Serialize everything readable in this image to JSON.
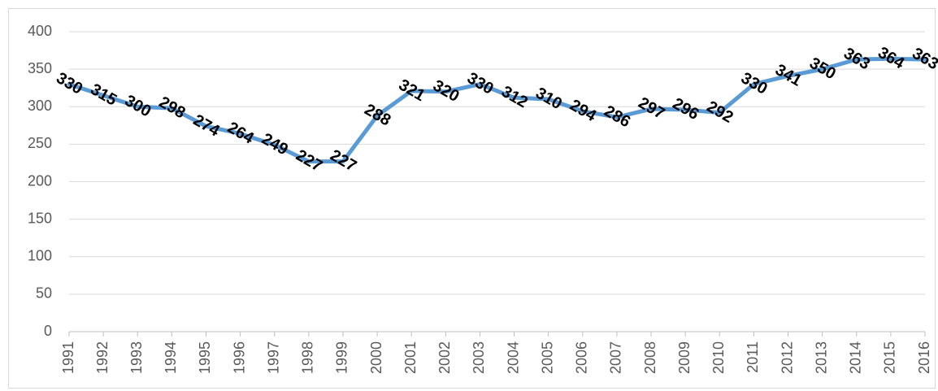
{
  "chart_data": {
    "type": "line",
    "categories": [
      "1991",
      "1992",
      "1993",
      "1994",
      "1995",
      "1996",
      "1997",
      "1998",
      "1999",
      "2000",
      "2001",
      "2002",
      "2003",
      "2004",
      "2005",
      "2006",
      "2007",
      "2008",
      "2009",
      "2010",
      "2011",
      "2012",
      "2013",
      "2014",
      "2015",
      "2016"
    ],
    "series": [
      {
        "color": "#5b9bd5",
        "values": [
          330,
          315,
          300,
          298,
          274,
          264,
          249,
          227,
          227,
          288,
          321,
          320,
          330,
          312,
          310,
          294,
          286,
          297,
          296,
          292,
          330,
          341,
          350,
          363,
          364,
          363
        ]
      }
    ],
    "ylim": [
      0,
      400
    ],
    "yticks": [
      0,
      50,
      100,
      150,
      200,
      250,
      300,
      350,
      400
    ],
    "grid": true,
    "data_labels": true
  }
}
